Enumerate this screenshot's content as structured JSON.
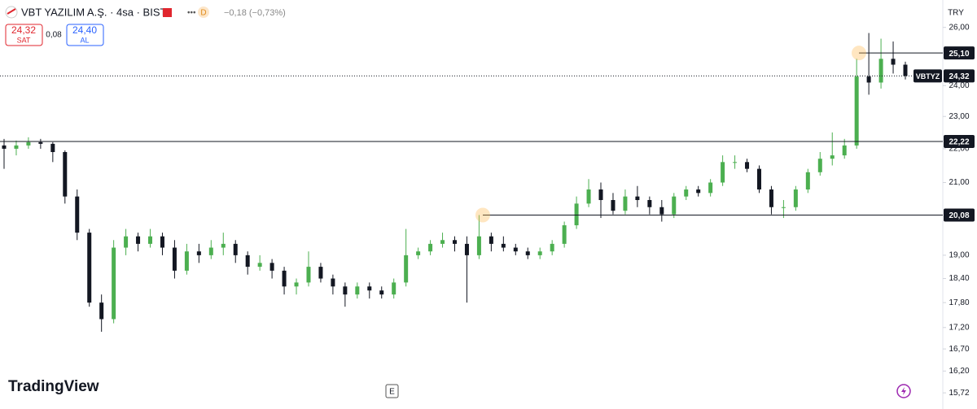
{
  "header": {
    "title": "VBT YAZILIM A.Ş. · 4sa · BIST",
    "badge": "D",
    "change": "−0,18 (−0,73%)",
    "sell_price": "24,32",
    "sell_label": "SAT",
    "spread": "0,08",
    "buy_price": "24,40",
    "buy_label": "AL"
  },
  "chart_data": {
    "type": "candlestick",
    "currency": "TRY",
    "symbol": "VBTYZ",
    "log": true,
    "up_color": "#4caf50",
    "down_color": "#131722",
    "ylim": [
      15.6,
      27.0
    ],
    "yticks": [
      {
        "value": 26,
        "label": "26,00"
      },
      {
        "value": 24,
        "label": "24,00"
      },
      {
        "value": 23,
        "label": "23,00"
      },
      {
        "value": 22,
        "label": "22,00"
      },
      {
        "value": 21,
        "label": "21,00"
      },
      {
        "value": 19,
        "label": "19,00"
      },
      {
        "value": 18.4,
        "label": "18,40"
      },
      {
        "value": 17.8,
        "label": "17,80"
      },
      {
        "value": 17.2,
        "label": "17,20"
      },
      {
        "value": 16.7,
        "label": "16,70"
      },
      {
        "value": 16.2,
        "label": "16,20"
      },
      {
        "value": 15.72,
        "label": "15,72"
      }
    ],
    "open": [
      22.1,
      22.0,
      22.1,
      22.2,
      22.15,
      21.9,
      20.6,
      19.6,
      17.8,
      17.4,
      19.2,
      19.5,
      19.3,
      19.5,
      19.2,
      18.6,
      19.1,
      19.0,
      19.2,
      19.3,
      19.0,
      18.7,
      18.8,
      18.6,
      18.2,
      18.3,
      18.7,
      18.4,
      18.2,
      18.0,
      18.2,
      18.1,
      18.0,
      18.3,
      19.0,
      19.1,
      19.3,
      19.4,
      19.3,
      19.0,
      19.5,
      19.3,
      19.2,
      19.1,
      19.0,
      19.1,
      19.3,
      19.8,
      20.4,
      20.8,
      20.5,
      20.2,
      20.6,
      20.5,
      20.3,
      20.1,
      20.6,
      20.8,
      20.7,
      21.0,
      21.6,
      21.6,
      21.4,
      20.8,
      20.3,
      20.3,
      20.8,
      21.3,
      21.7,
      21.8,
      22.1,
      24.3,
      24.1,
      24.9,
      24.7
    ],
    "high": [
      22.3,
      22.25,
      22.35,
      22.3,
      22.2,
      21.95,
      20.8,
      19.7,
      18.0,
      19.4,
      19.7,
      19.6,
      19.7,
      19.6,
      19.4,
      19.3,
      19.3,
      19.4,
      19.6,
      19.4,
      19.1,
      19.0,
      18.9,
      18.7,
      18.4,
      19.1,
      18.8,
      18.5,
      18.3,
      18.3,
      18.3,
      18.2,
      18.4,
      19.7,
      19.2,
      19.4,
      19.6,
      19.5,
      19.5,
      20.08,
      19.6,
      19.5,
      19.3,
      19.2,
      19.2,
      19.4,
      19.9,
      20.6,
      21.1,
      21.0,
      20.7,
      20.8,
      20.9,
      20.6,
      20.5,
      20.7,
      20.9,
      20.9,
      21.1,
      21.8,
      21.8,
      21.7,
      21.5,
      20.9,
      20.5,
      20.9,
      21.4,
      21.9,
      22.5,
      22.3,
      24.9,
      25.8,
      25.6,
      25.5,
      24.8
    ],
    "low": [
      21.4,
      21.8,
      22.0,
      22.0,
      21.6,
      20.4,
      19.4,
      17.7,
      17.1,
      17.3,
      19.0,
      19.1,
      19.2,
      19.0,
      18.4,
      18.5,
      18.8,
      18.9,
      19.0,
      18.8,
      18.5,
      18.6,
      18.4,
      18.0,
      18.0,
      18.2,
      18.3,
      18.0,
      17.7,
      17.9,
      17.9,
      17.9,
      17.9,
      18.2,
      18.9,
      19.0,
      19.2,
      19.1,
      17.8,
      18.9,
      19.1,
      19.1,
      19.0,
      18.9,
      18.9,
      19.0,
      19.2,
      19.7,
      20.3,
      20.0,
      20.1,
      20.1,
      20.3,
      20.1,
      19.9,
      20.0,
      20.5,
      20.6,
      20.6,
      20.9,
      21.4,
      21.3,
      20.7,
      20.1,
      20.0,
      20.2,
      20.7,
      21.2,
      21.5,
      21.7,
      22.0,
      23.7,
      23.9,
      24.4,
      24.2
    ],
    "close": [
      22.0,
      22.1,
      22.2,
      22.15,
      21.9,
      20.6,
      19.6,
      17.8,
      17.4,
      19.2,
      19.5,
      19.3,
      19.5,
      19.2,
      18.6,
      19.1,
      19.0,
      19.2,
      19.3,
      19.0,
      18.7,
      18.8,
      18.6,
      18.2,
      18.3,
      18.7,
      18.4,
      18.2,
      18.0,
      18.2,
      18.1,
      18.0,
      18.3,
      19.0,
      19.1,
      19.3,
      19.4,
      19.3,
      19.0,
      19.5,
      19.3,
      19.2,
      19.1,
      19.0,
      19.1,
      19.3,
      19.8,
      20.4,
      20.8,
      20.5,
      20.2,
      20.6,
      20.5,
      20.3,
      20.1,
      20.6,
      20.8,
      20.7,
      21.0,
      21.6,
      21.6,
      21.4,
      20.8,
      20.3,
      20.3,
      20.8,
      21.3,
      21.7,
      21.8,
      22.1,
      24.3,
      24.1,
      24.9,
      24.7,
      24.32
    ],
    "levels": [
      {
        "value": 25.1,
        "label": "25,10"
      },
      {
        "value": 22.22,
        "label": "22,22"
      },
      {
        "value": 20.08,
        "label": "20,08"
      }
    ],
    "last_price": {
      "value": 24.32,
      "label": "24,32"
    }
  },
  "footer": {
    "brand": "TradingView",
    "button": "E"
  }
}
